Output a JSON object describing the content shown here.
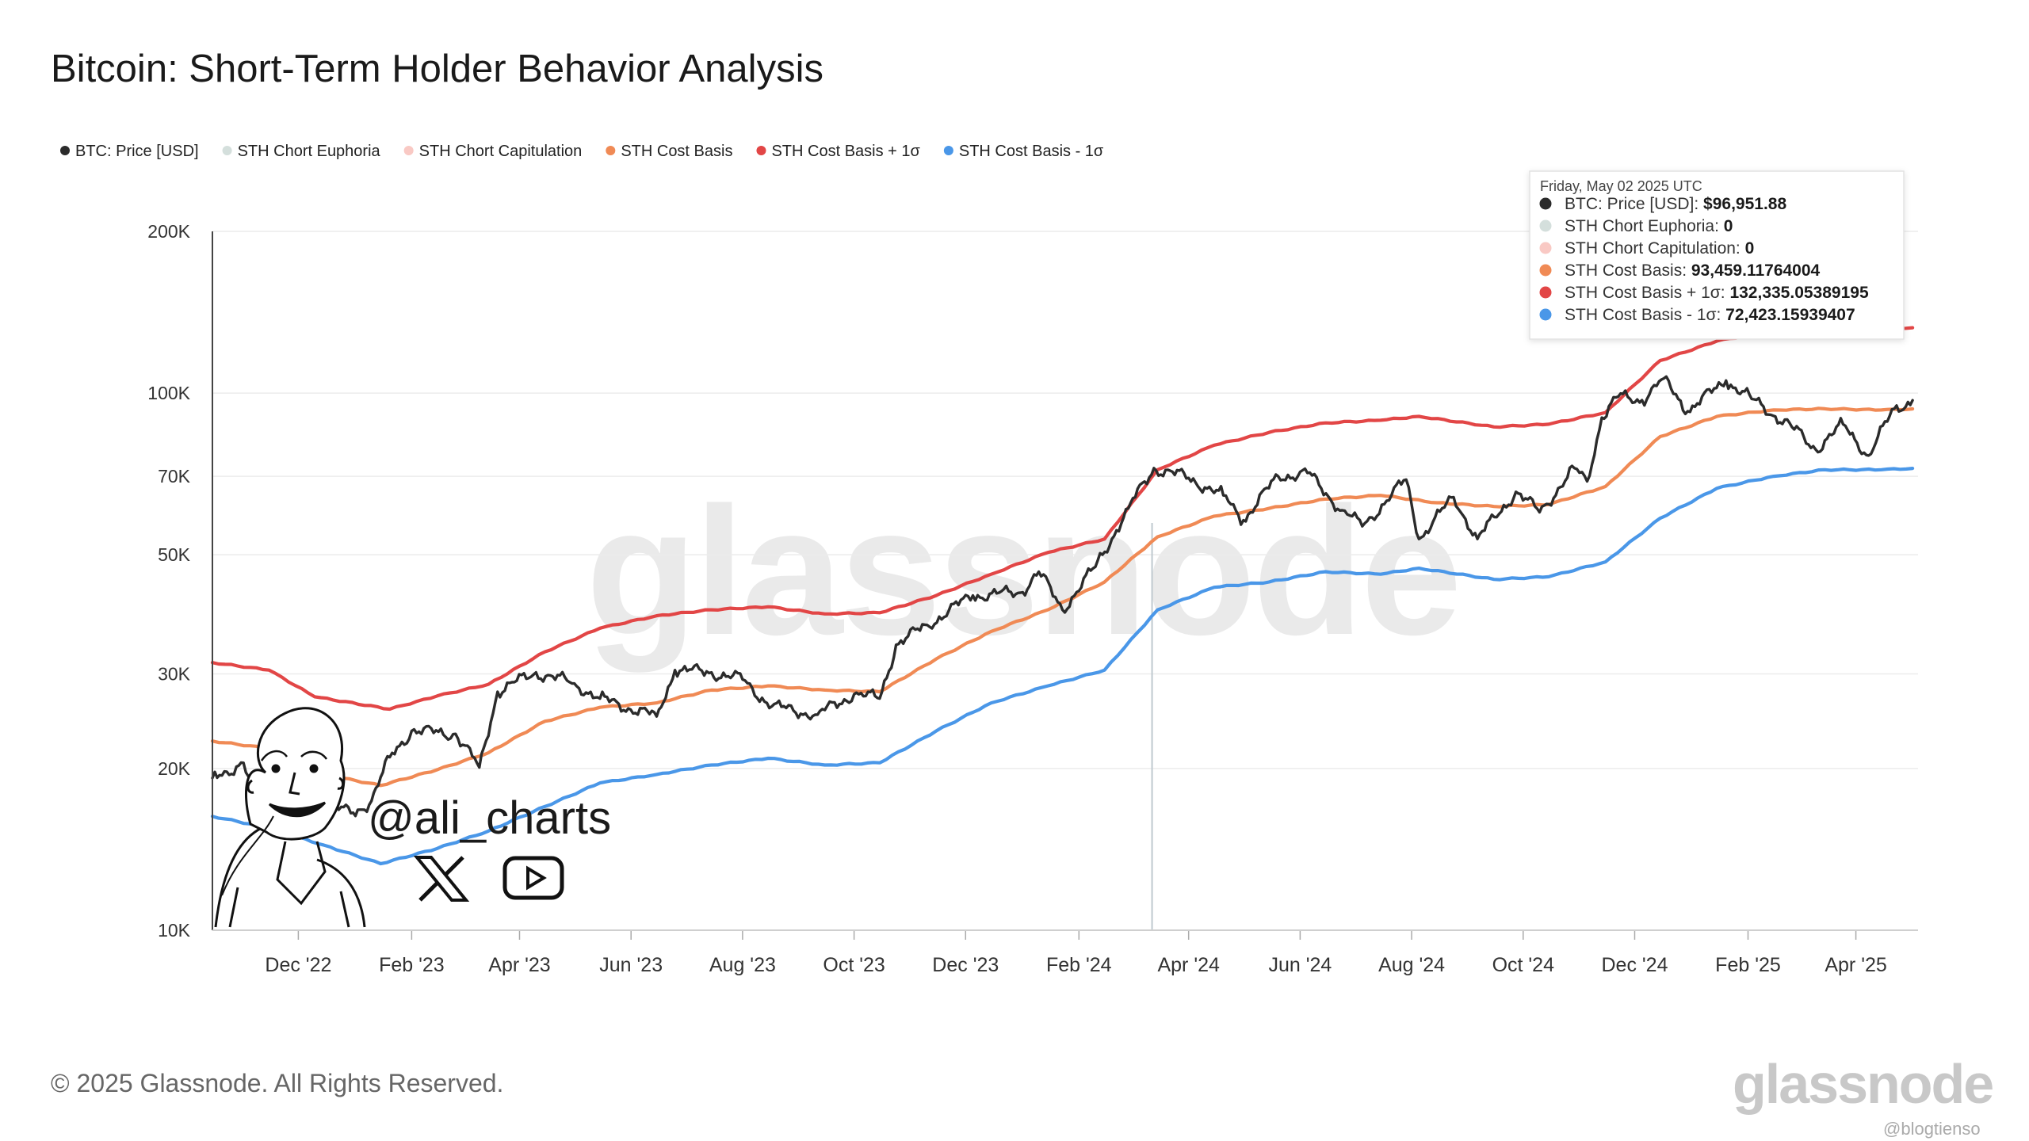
{
  "title": "Bitcoin: Short-Term Holder Behavior Analysis",
  "copyright": "© 2025 Glassnode. All Rights Reserved.",
  "watermark": "glassnode",
  "footer_logo": "glassnode",
  "footer_small": "@blogtienso",
  "handle": "@ali_charts",
  "colors": {
    "price": "#2b2b2b",
    "euphoria": "#d4dfdc",
    "capitulation": "#f9c9c4",
    "cost_basis": "#f08a55",
    "plus_1sigma": "#e24646",
    "minus_1sigma": "#4a97e8"
  },
  "icons": [
    "x-logo-icon",
    "youtube-icon",
    "avatar-sketch"
  ],
  "legend": [
    {
      "label": "BTC: Price [USD]",
      "color": "#2b2b2b"
    },
    {
      "label": "STH Chort Euphoria",
      "color": "#d4dfdc"
    },
    {
      "label": "STH Chort Capitulation",
      "color": "#f9c9c4"
    },
    {
      "label": "STH Cost Basis",
      "color": "#f08a55"
    },
    {
      "label": "STH Cost Basis + 1σ",
      "color": "#e24646"
    },
    {
      "label": "STH Cost Basis - 1σ",
      "color": "#4a97e8"
    }
  ],
  "tooltip": {
    "date": "Friday, May 02 2025 UTC",
    "rows": [
      {
        "label": "BTC: Price [USD]: ",
        "value": "$96,951.88",
        "color": "#2b2b2b"
      },
      {
        "label": "STH Chort Euphoria: ",
        "value": "0",
        "color": "#d4dfdc"
      },
      {
        "label": "STH Chort Capitulation: ",
        "value": "0",
        "color": "#f9c9c4"
      },
      {
        "label": "STH Cost Basis: ",
        "value": "93,459.11764004",
        "color": "#f08a55"
      },
      {
        "label": "STH Cost Basis + 1σ: ",
        "value": "132,335.05389195",
        "color": "#e24646"
      },
      {
        "label": "STH Cost Basis - 1σ: ",
        "value": "72,423.15939407",
        "color": "#4a97e8"
      }
    ]
  },
  "chart_data": {
    "type": "line",
    "yscale": "log",
    "ylim": [
      10000,
      200000
    ],
    "xlim": [
      "2022-10-15",
      "2025-05-05"
    ],
    "y_ticks": [
      {
        "value": 10000,
        "label": "10K"
      },
      {
        "value": 20000,
        "label": "20K"
      },
      {
        "value": 30000,
        "label": "30K"
      },
      {
        "value": 50000,
        "label": "50K"
      },
      {
        "value": 70000,
        "label": "70K"
      },
      {
        "value": 100000,
        "label": "100K"
      },
      {
        "value": 200000,
        "label": "200K"
      }
    ],
    "x_ticks": [
      {
        "date": "2022-12-01",
        "label": "Dec '22"
      },
      {
        "date": "2023-02-01",
        "label": "Feb '23"
      },
      {
        "date": "2023-04-01",
        "label": "Apr '23"
      },
      {
        "date": "2023-06-01",
        "label": "Jun '23"
      },
      {
        "date": "2023-08-01",
        "label": "Aug '23"
      },
      {
        "date": "2023-10-01",
        "label": "Oct '23"
      },
      {
        "date": "2023-12-01",
        "label": "Dec '23"
      },
      {
        "date": "2024-02-01",
        "label": "Feb '24"
      },
      {
        "date": "2024-04-01",
        "label": "Apr '24"
      },
      {
        "date": "2024-06-01",
        "label": "Jun '24"
      },
      {
        "date": "2024-08-01",
        "label": "Aug '24"
      },
      {
        "date": "2024-10-01",
        "label": "Oct '24"
      },
      {
        "date": "2024-12-01",
        "label": "Dec '24"
      },
      {
        "date": "2025-02-01",
        "label": "Feb '25"
      },
      {
        "date": "2025-04-01",
        "label": "Apr '25"
      }
    ],
    "crosshair_date": "2024-03-12",
    "series": [
      {
        "name": "BTC: Price [USD]",
        "key": "price",
        "points": [
          [
            "2022-10-15",
            19200
          ],
          [
            "2022-11-01",
            20500
          ],
          [
            "2022-11-09",
            16500
          ],
          [
            "2022-11-20",
            16300
          ],
          [
            "2022-12-10",
            17200
          ],
          [
            "2022-12-31",
            16550
          ],
          [
            "2023-01-10",
            17400
          ],
          [
            "2023-01-20",
            21000
          ],
          [
            "2023-02-01",
            23500
          ],
          [
            "2023-02-25",
            23200
          ],
          [
            "2023-03-10",
            20100
          ],
          [
            "2023-03-20",
            27800
          ],
          [
            "2023-04-10",
            30200
          ],
          [
            "2023-05-01",
            28800
          ],
          [
            "2023-05-15",
            27000
          ],
          [
            "2023-06-15",
            25000
          ],
          [
            "2023-06-25",
            30500
          ],
          [
            "2023-07-15",
            30200
          ],
          [
            "2023-08-01",
            29300
          ],
          [
            "2023-08-17",
            26100
          ],
          [
            "2023-09-11",
            25200
          ],
          [
            "2023-10-01",
            27500
          ],
          [
            "2023-10-15",
            27000
          ],
          [
            "2023-10-24",
            34000
          ],
          [
            "2023-11-10",
            37000
          ],
          [
            "2023-12-05",
            42000
          ],
          [
            "2023-12-31",
            42500
          ],
          [
            "2024-01-10",
            46500
          ],
          [
            "2024-01-23",
            39500
          ],
          [
            "2024-02-10",
            47500
          ],
          [
            "2024-02-28",
            61000
          ],
          [
            "2024-03-13",
            72500
          ],
          [
            "2024-04-01",
            69500
          ],
          [
            "2024-04-20",
            64500
          ],
          [
            "2024-05-01",
            58000
          ],
          [
            "2024-05-20",
            70000
          ],
          [
            "2024-06-05",
            71000
          ],
          [
            "2024-06-24",
            60500
          ],
          [
            "2024-07-05",
            56500
          ],
          [
            "2024-07-29",
            69000
          ],
          [
            "2024-08-05",
            53500
          ],
          [
            "2024-08-24",
            64000
          ],
          [
            "2024-09-06",
            53500
          ],
          [
            "2024-09-27",
            65500
          ],
          [
            "2024-10-10",
            60000
          ],
          [
            "2024-10-29",
            72500
          ],
          [
            "2024-11-05",
            68500
          ],
          [
            "2024-11-13",
            90000
          ],
          [
            "2024-11-22",
            98500
          ],
          [
            "2024-12-05",
            97000
          ],
          [
            "2024-12-17",
            106500
          ],
          [
            "2024-12-30",
            92500
          ],
          [
            "2025-01-20",
            105500
          ],
          [
            "2025-02-03",
            97500
          ],
          [
            "2025-02-25",
            86500
          ],
          [
            "2025-03-10",
            78500
          ],
          [
            "2025-03-25",
            87500
          ],
          [
            "2025-04-08",
            76500
          ],
          [
            "2025-04-22",
            93500
          ],
          [
            "2025-05-02",
            96951.88
          ]
        ]
      },
      {
        "name": "STH Cost Basis",
        "key": "cost_basis",
        "points": [
          [
            "2022-10-15",
            22500
          ],
          [
            "2022-11-15",
            21800
          ],
          [
            "2022-12-15",
            19500
          ],
          [
            "2023-01-15",
            18600
          ],
          [
            "2023-02-15",
            19900
          ],
          [
            "2023-03-15",
            21400
          ],
          [
            "2023-04-15",
            24500
          ],
          [
            "2023-05-15",
            26000
          ],
          [
            "2023-06-15",
            26500
          ],
          [
            "2023-07-15",
            28000
          ],
          [
            "2023-08-15",
            28500
          ],
          [
            "2023-09-15",
            28000
          ],
          [
            "2023-10-15",
            27800
          ],
          [
            "2023-11-15",
            32000
          ],
          [
            "2023-12-15",
            36000
          ],
          [
            "2024-01-15",
            39500
          ],
          [
            "2024-02-15",
            44500
          ],
          [
            "2024-03-15",
            54000
          ],
          [
            "2024-04-15",
            59000
          ],
          [
            "2024-05-15",
            61000
          ],
          [
            "2024-06-15",
            63500
          ],
          [
            "2024-07-15",
            64500
          ],
          [
            "2024-08-15",
            62500
          ],
          [
            "2024-09-15",
            61500
          ],
          [
            "2024-10-15",
            62000
          ],
          [
            "2024-11-15",
            67000
          ],
          [
            "2024-12-15",
            83000
          ],
          [
            "2025-01-15",
            90500
          ],
          [
            "2025-02-15",
            93000
          ],
          [
            "2025-03-15",
            93500
          ],
          [
            "2025-04-15",
            93000
          ],
          [
            "2025-05-02",
            93459.12
          ]
        ]
      },
      {
        "name": "STH Cost Basis + 1σ",
        "key": "plus_1sigma",
        "points": [
          [
            "2022-10-15",
            31500
          ],
          [
            "2022-11-15",
            30500
          ],
          [
            "2022-12-10",
            27200
          ],
          [
            "2023-01-20",
            25800
          ],
          [
            "2023-02-15",
            27300
          ],
          [
            "2023-03-15",
            28700
          ],
          [
            "2023-04-15",
            33000
          ],
          [
            "2023-05-15",
            36500
          ],
          [
            "2023-06-15",
            38500
          ],
          [
            "2023-07-15",
            39500
          ],
          [
            "2023-08-15",
            40000
          ],
          [
            "2023-09-15",
            38800
          ],
          [
            "2023-10-15",
            39000
          ],
          [
            "2023-11-15",
            42000
          ],
          [
            "2023-12-15",
            46000
          ],
          [
            "2024-01-15",
            50500
          ],
          [
            "2024-02-15",
            53500
          ],
          [
            "2024-03-15",
            72000
          ],
          [
            "2024-04-15",
            80000
          ],
          [
            "2024-05-15",
            84500
          ],
          [
            "2024-06-15",
            88000
          ],
          [
            "2024-07-15",
            89000
          ],
          [
            "2024-08-05",
            90500
          ],
          [
            "2024-09-15",
            86500
          ],
          [
            "2024-10-15",
            87500
          ],
          [
            "2024-11-15",
            92000
          ],
          [
            "2024-12-15",
            115000
          ],
          [
            "2025-01-15",
            125000
          ],
          [
            "2025-02-15",
            130500
          ],
          [
            "2025-03-15",
            132000
          ],
          [
            "2025-04-15",
            132000
          ],
          [
            "2025-05-02",
            132335.05
          ]
        ]
      },
      {
        "name": "STH Cost Basis - 1σ",
        "key": "minus_1sigma",
        "points": [
          [
            "2022-10-15",
            16300
          ],
          [
            "2022-11-15",
            15500
          ],
          [
            "2022-12-15",
            14400
          ],
          [
            "2023-01-15",
            13300
          ],
          [
            "2023-02-15",
            14200
          ],
          [
            "2023-03-15",
            15300
          ],
          [
            "2023-04-15",
            17000
          ],
          [
            "2023-05-15",
            18800
          ],
          [
            "2023-06-15",
            19500
          ],
          [
            "2023-07-15",
            20300
          ],
          [
            "2023-08-15",
            20900
          ],
          [
            "2023-09-15",
            20300
          ],
          [
            "2023-10-15",
            20500
          ],
          [
            "2023-11-15",
            23500
          ],
          [
            "2023-12-15",
            26500
          ],
          [
            "2024-01-15",
            28500
          ],
          [
            "2024-02-15",
            30500
          ],
          [
            "2024-03-15",
            39500
          ],
          [
            "2024-04-15",
            43500
          ],
          [
            "2024-05-15",
            44500
          ],
          [
            "2024-06-15",
            46500
          ],
          [
            "2024-07-15",
            46000
          ],
          [
            "2024-08-05",
            47200
          ],
          [
            "2024-09-15",
            45000
          ],
          [
            "2024-10-15",
            45500
          ],
          [
            "2024-11-15",
            48500
          ],
          [
            "2024-12-15",
            58500
          ],
          [
            "2025-01-15",
            66500
          ],
          [
            "2025-02-15",
            70000
          ],
          [
            "2025-03-15",
            72000
          ],
          [
            "2025-04-15",
            72000
          ],
          [
            "2025-05-02",
            72423.16
          ]
        ]
      }
    ]
  }
}
